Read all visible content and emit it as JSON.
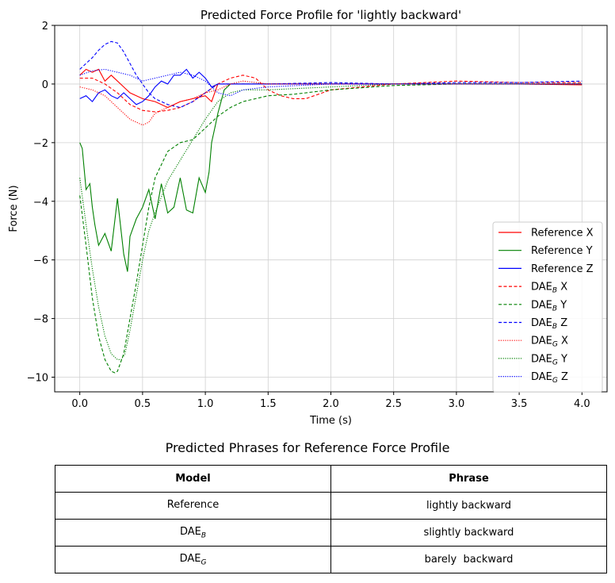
{
  "chart_data": {
    "type": "line",
    "title": "Predicted Force Profile for 'lightly backward'",
    "xlabel": "Time (s)",
    "ylabel": "Force (N)",
    "xlim": [
      -0.2,
      4.2
    ],
    "ylim": [
      -10.5,
      2.0
    ],
    "xticks": [
      "0.0",
      "0.5",
      "1.0",
      "1.5",
      "2.0",
      "2.5",
      "3.0",
      "3.5",
      "4.0"
    ],
    "yticks": [
      "2",
      "0",
      "−2",
      "−4",
      "−6",
      "−8",
      "−10"
    ],
    "grid": true,
    "legend_position": "lower-right",
    "series": [
      {
        "name": "Reference X",
        "label_base": "Reference X",
        "label_sub": "",
        "color": "#ff0000",
        "dash": "solid",
        "x": [
          0,
          0.05,
          0.1,
          0.15,
          0.2,
          0.25,
          0.3,
          0.35,
          0.4,
          0.5,
          0.6,
          0.7,
          0.8,
          0.9,
          1.0,
          1.05,
          1.1,
          1.5,
          2.0,
          2.5,
          3.0,
          3.5,
          4.0
        ],
        "y": [
          0.3,
          0.5,
          0.4,
          0.5,
          0.1,
          0.3,
          0.1,
          -0.1,
          -0.3,
          -0.5,
          -0.6,
          -0.8,
          -0.6,
          -0.5,
          -0.4,
          -0.6,
          0.0,
          0.0,
          0.0,
          0.0,
          0.0,
          0.0,
          -0.03
        ]
      },
      {
        "name": "Reference Y",
        "label_base": "Reference Y",
        "label_sub": "",
        "color": "#008000",
        "dash": "solid",
        "x": [
          0,
          0.02,
          0.05,
          0.08,
          0.1,
          0.12,
          0.15,
          0.2,
          0.25,
          0.3,
          0.35,
          0.38,
          0.4,
          0.45,
          0.5,
          0.55,
          0.6,
          0.65,
          0.7,
          0.75,
          0.8,
          0.85,
          0.9,
          0.95,
          1.0,
          1.03,
          1.05,
          1.08,
          1.1,
          1.15,
          1.2,
          1.5,
          2.0,
          2.5,
          3.0,
          3.5,
          4.0
        ],
        "y": [
          -2.0,
          -2.2,
          -3.6,
          -3.4,
          -4.2,
          -4.8,
          -5.5,
          -5.1,
          -5.7,
          -3.9,
          -5.8,
          -6.4,
          -5.2,
          -4.6,
          -4.2,
          -3.6,
          -4.6,
          -3.4,
          -4.4,
          -4.2,
          -3.2,
          -4.3,
          -4.4,
          -3.2,
          -3.7,
          -3.0,
          -2.0,
          -1.4,
          -1.0,
          -0.2,
          0.0,
          0.0,
          0.0,
          0.0,
          0.0,
          0.0,
          0.0
        ]
      },
      {
        "name": "Reference Z",
        "label_base": "Reference Z",
        "label_sub": "",
        "color": "#0000ff",
        "dash": "solid",
        "x": [
          0,
          0.05,
          0.1,
          0.15,
          0.2,
          0.25,
          0.3,
          0.35,
          0.4,
          0.45,
          0.5,
          0.55,
          0.6,
          0.65,
          0.7,
          0.75,
          0.8,
          0.85,
          0.9,
          0.95,
          1.0,
          1.05,
          1.1,
          1.2,
          1.5,
          2.0,
          2.5,
          3.0,
          3.5,
          4.0
        ],
        "y": [
          -0.5,
          -0.4,
          -0.6,
          -0.3,
          -0.2,
          -0.4,
          -0.5,
          -0.3,
          -0.5,
          -0.7,
          -0.6,
          -0.4,
          -0.1,
          0.1,
          0.0,
          0.3,
          0.3,
          0.5,
          0.2,
          0.4,
          0.2,
          -0.1,
          0.0,
          0.0,
          0.0,
          0.0,
          0.0,
          0.0,
          0.0,
          0.0
        ]
      },
      {
        "name": "DAE_B X",
        "label_base": "DAE",
        "label_sub": "B",
        "label_suffix": " X",
        "color": "#ff0000",
        "dash": "dashed",
        "x": [
          0,
          0.1,
          0.2,
          0.3,
          0.4,
          0.5,
          0.6,
          0.7,
          0.8,
          0.9,
          1.0,
          1.1,
          1.2,
          1.3,
          1.4,
          1.5,
          1.6,
          1.7,
          1.8,
          2.0,
          2.5,
          3.0,
          3.5,
          4.0
        ],
        "y": [
          0.2,
          0.2,
          0.0,
          -0.3,
          -0.7,
          -0.9,
          -0.95,
          -0.9,
          -0.8,
          -0.6,
          -0.3,
          0.0,
          0.2,
          0.3,
          0.2,
          -0.2,
          -0.4,
          -0.5,
          -0.5,
          -0.2,
          0.0,
          0.1,
          0.05,
          0.05
        ]
      },
      {
        "name": "DAE_B Y",
        "label_base": "DAE",
        "label_sub": "B",
        "label_suffix": " Y",
        "color": "#008000",
        "dash": "dashed",
        "x": [
          0,
          0.05,
          0.1,
          0.15,
          0.2,
          0.25,
          0.28,
          0.3,
          0.35,
          0.4,
          0.45,
          0.5,
          0.55,
          0.6,
          0.7,
          0.8,
          0.9,
          1.0,
          1.1,
          1.2,
          1.3,
          1.4,
          1.5,
          1.7,
          2.0,
          2.5,
          3.0,
          3.5,
          4.0
        ],
        "y": [
          -3.8,
          -5.5,
          -7.3,
          -8.6,
          -9.4,
          -9.8,
          -9.85,
          -9.8,
          -9.2,
          -8.0,
          -6.8,
          -5.5,
          -4.2,
          -3.2,
          -2.3,
          -2.0,
          -1.9,
          -1.5,
          -1.1,
          -0.8,
          -0.6,
          -0.5,
          -0.4,
          -0.35,
          -0.2,
          -0.05,
          0.0,
          0.0,
          0.0
        ]
      },
      {
        "name": "DAE_B Z",
        "label_base": "DAE",
        "label_sub": "B",
        "label_suffix": " Z",
        "color": "#0000ff",
        "dash": "dashed",
        "x": [
          0,
          0.05,
          0.1,
          0.15,
          0.2,
          0.25,
          0.3,
          0.35,
          0.4,
          0.45,
          0.5,
          0.55,
          0.6,
          0.7,
          0.8,
          0.9,
          1.0,
          1.1,
          1.2,
          1.5,
          2.0,
          2.5,
          3.0,
          3.5,
          4.0
        ],
        "y": [
          0.5,
          0.7,
          0.9,
          1.15,
          1.35,
          1.45,
          1.4,
          1.1,
          0.7,
          0.3,
          0.0,
          -0.3,
          -0.5,
          -0.7,
          -0.8,
          -0.6,
          -0.3,
          0.0,
          0.0,
          0.0,
          0.05,
          0.0,
          0.05,
          0.05,
          0.1
        ]
      },
      {
        "name": "DAE_G X",
        "label_base": "DAE",
        "label_sub": "G",
        "label_suffix": " X",
        "color": "#ff0000",
        "dash": "dotted",
        "x": [
          0,
          0.1,
          0.2,
          0.3,
          0.4,
          0.5,
          0.55,
          0.6,
          0.7,
          0.8,
          0.9,
          1.0,
          1.1,
          1.2,
          1.3,
          1.5,
          2.0,
          2.5,
          3.0,
          3.5,
          4.0
        ],
        "y": [
          -0.1,
          -0.2,
          -0.4,
          -0.8,
          -1.2,
          -1.4,
          -1.3,
          -1.0,
          -0.8,
          -0.6,
          -0.5,
          -0.3,
          -0.2,
          0.0,
          0.1,
          0.0,
          0.0,
          0.0,
          0.0,
          0.0,
          0.0
        ]
      },
      {
        "name": "DAE_G Y",
        "label_base": "DAE",
        "label_sub": "G",
        "label_suffix": " Y",
        "color": "#008000",
        "dash": "dotted",
        "x": [
          0,
          0.05,
          0.1,
          0.15,
          0.2,
          0.25,
          0.3,
          0.33,
          0.36,
          0.4,
          0.45,
          0.5,
          0.55,
          0.6,
          0.7,
          0.8,
          0.9,
          1.0,
          1.1,
          1.2,
          1.3,
          1.4,
          1.5,
          2.0,
          2.5,
          3.0,
          3.5,
          4.0
        ],
        "y": [
          -3.2,
          -4.8,
          -6.3,
          -7.6,
          -8.6,
          -9.2,
          -9.4,
          -9.4,
          -9.2,
          -8.4,
          -7.2,
          -6.0,
          -5.0,
          -4.4,
          -3.3,
          -2.6,
          -1.9,
          -1.2,
          -0.6,
          -0.3,
          -0.2,
          -0.2,
          -0.2,
          -0.1,
          0.0,
          0.0,
          0.0,
          0.0
        ]
      },
      {
        "name": "DAE_G Z",
        "label_base": "DAE",
        "label_sub": "G",
        "label_suffix": " Z",
        "color": "#0000ff",
        "dash": "dotted",
        "x": [
          0,
          0.1,
          0.2,
          0.3,
          0.4,
          0.5,
          0.6,
          0.7,
          0.8,
          0.9,
          1.0,
          1.1,
          1.2,
          1.3,
          1.5,
          2.0,
          2.5,
          3.0,
          3.5,
          4.0
        ],
        "y": [
          0.3,
          0.45,
          0.5,
          0.4,
          0.3,
          0.1,
          0.2,
          0.3,
          0.4,
          0.3,
          0.1,
          -0.3,
          -0.4,
          -0.2,
          -0.1,
          0.0,
          0.0,
          0.0,
          0.0,
          0.0
        ]
      }
    ]
  },
  "table": {
    "title": "Predicted Phrases for Reference Force Profile",
    "headers": {
      "model": "Model",
      "phrase": "Phrase"
    },
    "rows": [
      {
        "model_base": "Reference",
        "model_sub": "",
        "phrase": "lightly backward"
      },
      {
        "model_base": "DAE",
        "model_sub": "B",
        "phrase": "slightly backward"
      },
      {
        "model_base": "DAE",
        "model_sub": "G",
        "phrase": "barely  backward"
      }
    ]
  }
}
